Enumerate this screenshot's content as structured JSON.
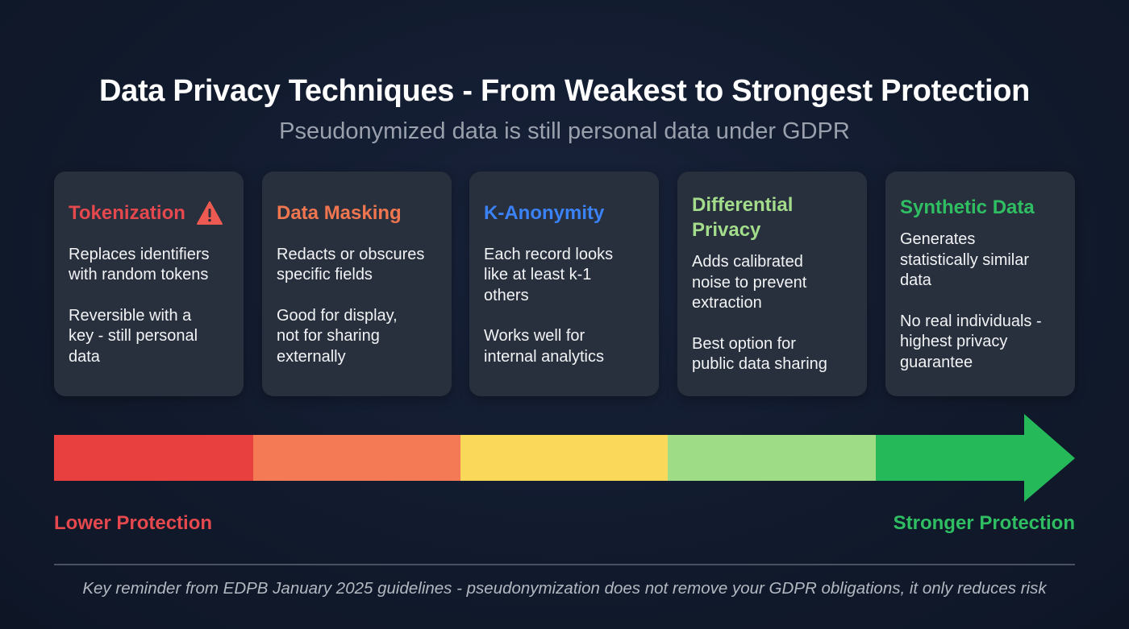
{
  "header": {
    "title": "Data Privacy Techniques - From Weakest to Strongest Protection",
    "subtitle": "Pseudonymized data is still personal data under GDPR"
  },
  "cards": [
    {
      "title": "Tokenization",
      "color": "#e5484d",
      "icon": "warning-icon",
      "paragraphs": [
        "Replaces identifiers\nwith random tokens",
        "Reversible with a\nkey - still personal\ndata"
      ]
    },
    {
      "title": "Data Masking",
      "color": "#f0764f",
      "paragraphs": [
        "Redacts or obscures\nspecific fields",
        "Good for display,\nnot for sharing\nexternally"
      ]
    },
    {
      "title": "K-Anonymity",
      "color": "#3b82f6",
      "paragraphs": [
        "Each record looks\nlike at least k-1\nothers",
        "Works well for\ninternal analytics"
      ]
    },
    {
      "title": "Differential\nPrivacy",
      "color": "#a3dc8a",
      "paragraphs": [
        "Adds calibrated\nnoise to prevent\nextraction",
        "Best option for\npublic data sharing"
      ]
    },
    {
      "title": "Synthetic Data",
      "color": "#2fbf62",
      "paragraphs": [
        "Generates\nstatistically similar\ndata",
        "No real individuals -\nhighest privacy\nguarantee"
      ]
    }
  ],
  "scale": {
    "segment_colors": [
      "#e8403f",
      "#f47a55",
      "#f9d85a",
      "#9edc86",
      "#25b95a"
    ],
    "low_label": "Lower Protection",
    "high_label": "Stronger Protection",
    "low_color": "#e5484d",
    "high_color": "#2fbf62"
  },
  "footer": {
    "note": "Key reminder from EDPB January 2025 guidelines - pseudonymization does not remove your GDPR obligations, it only reduces risk"
  }
}
